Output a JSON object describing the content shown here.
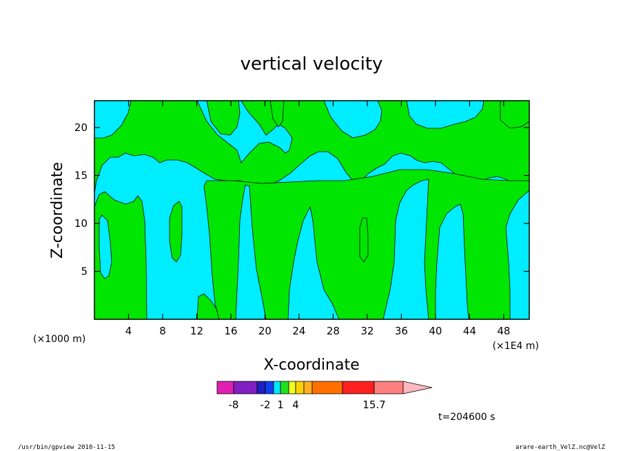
{
  "chart_data": {
    "type": "heatmap",
    "title": "vertical velocity",
    "xlabel": "X-coordinate",
    "ylabel": "Z-coordinate",
    "x_units_left": "(×1000 m)",
    "x_units_right": "(×1E4 m)",
    "x_ticks": [
      4,
      8,
      12,
      16,
      20,
      24,
      28,
      32,
      36,
      40,
      44,
      48
    ],
    "y_ticks": [
      5,
      10,
      15,
      20
    ],
    "xlim": [
      0,
      51
    ],
    "ylim": [
      0,
      22.8
    ],
    "colorbar": {
      "tick_labels": [
        "-8",
        "-2",
        "1",
        "4",
        "15.7"
      ],
      "colors": [
        "#e020b0",
        "#8020c0",
        "#2020c0",
        "#1040f0",
        "#00e8ff",
        "#20e020",
        "#f0ff20",
        "#ffd000",
        "#ffb020",
        "#ff7000",
        "#ff2020",
        "#ff8080",
        "#ffb8c0"
      ]
    },
    "field_colors": {
      "cyan": "#00ecff",
      "green": "#00e600"
    },
    "time_label": "t=204600 s"
  },
  "footer": {
    "left": "/usr/bin/gpview   2010-11-15",
    "right": "arare-earth_VelZ.nc@VelZ"
  }
}
